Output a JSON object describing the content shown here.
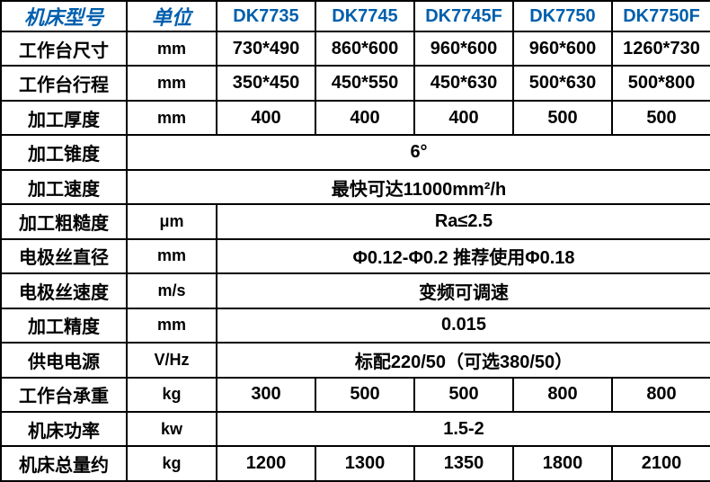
{
  "type": "table",
  "colors": {
    "header_text": "#005fad",
    "body_text": "#000000",
    "border": "#000000",
    "background": "#ffffff"
  },
  "columns": {
    "label_header": "机床型号",
    "unit_header": "单位",
    "models": [
      "DK7735",
      "DK7745",
      "DK7745F",
      "DK7750",
      "DK7750F"
    ]
  },
  "rows": [
    {
      "label": "工作台尺寸",
      "unit": "mm",
      "values": [
        "730*490",
        "860*600",
        "960*600",
        "960*600",
        "1260*730"
      ]
    },
    {
      "label": "工作台行程",
      "unit": "mm",
      "values": [
        "350*450",
        "450*550",
        "450*630",
        "500*630",
        "500*800"
      ]
    },
    {
      "label": "加工厚度",
      "unit": "mm",
      "values": [
        "400",
        "400",
        "400",
        "500",
        "500"
      ]
    },
    {
      "label": "加工锥度",
      "unit": "",
      "spanned": "6°",
      "span_includes_unit": true
    },
    {
      "label": "加工速度",
      "unit": "",
      "spanned": "最快可达11000mm²/h",
      "span_includes_unit": true
    },
    {
      "label": "加工粗糙度",
      "unit": "μm",
      "spanned": "Ra≤2.5"
    },
    {
      "label": "电极丝直径",
      "unit": "mm",
      "spanned": "Φ0.12-Φ0.2 推荐使用Φ0.18"
    },
    {
      "label": "电极丝速度",
      "unit": "m/s",
      "spanned": "变频可调速"
    },
    {
      "label": "加工精度",
      "unit": "mm",
      "spanned": "0.015"
    },
    {
      "label": "供电电源",
      "unit": "V/Hz",
      "spanned": "标配220/50（可选380/50）"
    },
    {
      "label": "工作台承重",
      "unit": "kg",
      "values": [
        "300",
        "500",
        "500",
        "800",
        "800"
      ]
    },
    {
      "label": "机床功率",
      "unit": "kw",
      "spanned": "1.5-2"
    },
    {
      "label": "机床总量约",
      "unit": "kg",
      "values": [
        "1200",
        "1300",
        "1350",
        "1800",
        "2100"
      ]
    }
  ]
}
